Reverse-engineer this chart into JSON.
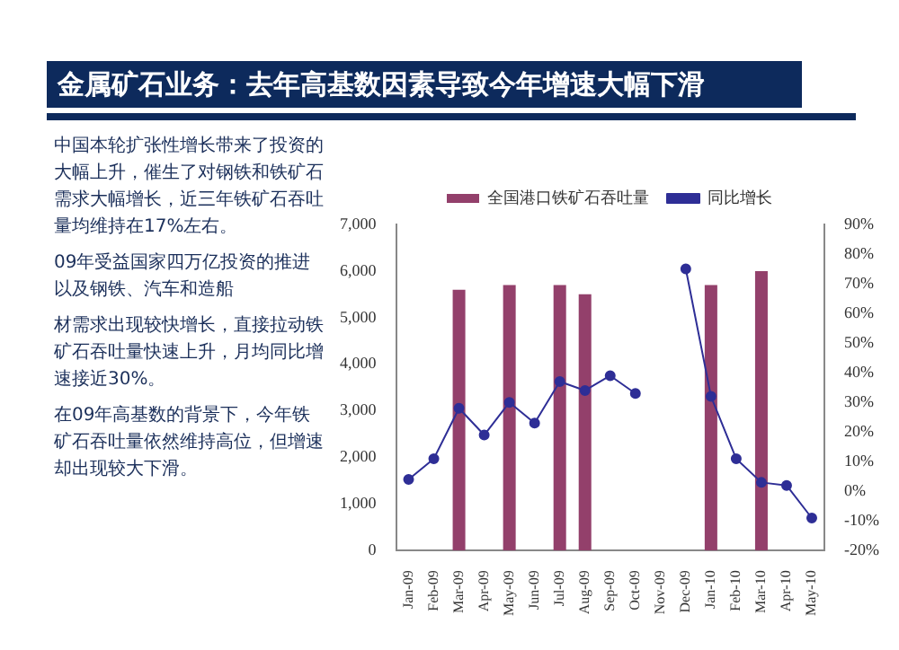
{
  "chart_data": {
    "type": "bar",
    "title": "金属矿石业务：去年高基数因素导致今年增速大幅下滑",
    "annotations": [
      "中国本轮扩张性增长带来了投资的大幅上升，催生了对钢铁和铁矿石需求大幅增长，近三年铁矿石吞吐量均维持在17%左右。",
      "09年受益国家四万亿投资的推进以及钢铁、汽车和造船",
      "材需求出现较快增长，直接拉动铁矿石吞吐量快速上升，月均同比增速接近30%。",
      "在09年高基数的背景下，今年铁矿石吞吐量依然维持高位，但增速却出现较大下滑。"
    ],
    "categories": [
      "Jan-09",
      "Feb-09",
      "Mar-09",
      "Apr-09",
      "May-09",
      "Jun-09",
      "Jul-09",
      "Aug-09",
      "Sep-09",
      "Oct-09",
      "Nov-09",
      "Dec-09",
      "Jan-10",
      "Feb-10",
      "Mar-10",
      "Apr-10",
      "May-10"
    ],
    "series": [
      {
        "name": "全国港口铁矿石吞吐量",
        "color": "#93406b",
        "values": [
          null,
          null,
          5600,
          null,
          5700,
          null,
          5700,
          5500,
          null,
          null,
          null,
          null,
          5700,
          null,
          6000,
          null,
          null
        ]
      },
      {
        "name": "同比增长",
        "type": "line",
        "axis": "y2",
        "color": "#2e2e96",
        "values": [
          4,
          11,
          28,
          19,
          30,
          23,
          37,
          34,
          39,
          33,
          null,
          75,
          32,
          11,
          3,
          2,
          -9
        ]
      }
    ],
    "ylim": [
      0,
      7000
    ],
    "yticks": [
      0,
      {
        "value": 1000,
        "label": "1,000"
      },
      {
        "value": 2000,
        "label": "2,000"
      },
      {
        "value": 3000,
        "label": "3,000"
      },
      {
        "value": 4000,
        "label": "4,000"
      },
      {
        "value": 5000,
        "label": "5,000"
      },
      {
        "value": 6000,
        "label": "6,000"
      },
      {
        "value": 7000,
        "label": "7,000"
      }
    ],
    "y2lim": [
      -20,
      90
    ],
    "y2ticks": [
      {
        "value": -20,
        "label": "-20%"
      },
      {
        "value": -10,
        "label": "-10%"
      },
      {
        "value": 0,
        "label": "0%"
      },
      {
        "value": 10,
        "label": "10%"
      },
      {
        "value": 20,
        "label": "20%"
      },
      {
        "value": 30,
        "label": "30%"
      },
      {
        "value": 40,
        "label": "40%"
      },
      {
        "value": 50,
        "label": "50%"
      },
      {
        "value": 60,
        "label": "60%"
      },
      {
        "value": 70,
        "label": "70%"
      },
      {
        "value": 80,
        "label": "80%"
      },
      {
        "value": 90,
        "label": "90%"
      }
    ],
    "legend": "top",
    "marker": "circle",
    "grid": false
  }
}
